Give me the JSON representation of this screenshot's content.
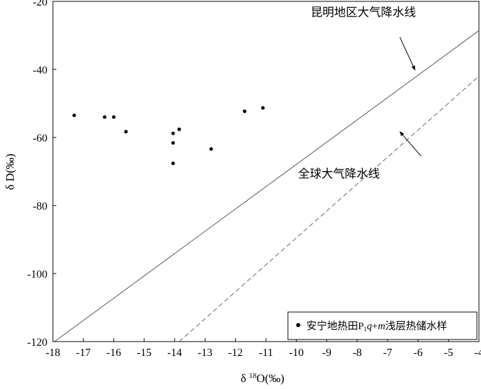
{
  "chart_data": {
    "type": "scatter",
    "xlabel": "δ ¹⁸O(‰)",
    "xlabel_parts": {
      "delta": "δ",
      "sup": "18",
      "rest": "O(‰)"
    },
    "ylabel": "δ D(‰)",
    "xlim": [
      -18,
      -4
    ],
    "ylim": [
      -120,
      -20
    ],
    "xticks": [
      -18,
      -17,
      -16,
      -15,
      -14,
      -13,
      -12,
      -11,
      -10,
      -9,
      -8,
      -7,
      -6,
      -5,
      -4
    ],
    "yticks": [
      -20,
      -40,
      -60,
      -80,
      -100,
      -120
    ],
    "grid": false,
    "legend_position": "bottom-right",
    "series": [
      {
        "name": "安宁地热田P1q+m浅层热储水样",
        "legend_parts": {
          "pre": "安宁地热田P",
          "sub": "1",
          "q": "q",
          "plus": "+",
          "m": "m",
          "post": "浅层热储水样"
        },
        "marker": "dot",
        "color": "#000000",
        "points": [
          {
            "x": -17.3,
            "y": -53.5
          },
          {
            "x": -16.3,
            "y": -54.0
          },
          {
            "x": -16.0,
            "y": -54.0
          },
          {
            "x": -15.6,
            "y": -58.3
          },
          {
            "x": -14.05,
            "y": -58.8
          },
          {
            "x": -13.85,
            "y": -57.6
          },
          {
            "x": -14.05,
            "y": -61.6
          },
          {
            "x": -14.05,
            "y": -67.6
          },
          {
            "x": -12.8,
            "y": -63.4
          },
          {
            "x": -11.7,
            "y": -52.3
          },
          {
            "x": -11.1,
            "y": -51.3
          }
        ]
      }
    ],
    "lines": [
      {
        "name": "昆明地区大气降水线",
        "style": "solid",
        "color": "#555555",
        "x1": -18.1,
        "y1": -121,
        "x2": -4,
        "y2": -28.6
      },
      {
        "name": "全球大气降水线",
        "style": "dashed",
        "color": "#666666",
        "x1": -13.85,
        "y1": -120,
        "x2": -4,
        "y2": -42
      }
    ],
    "annotations": [
      {
        "text": "昆明地区大气降水线",
        "label_x": -7.8,
        "label_y": -24.3,
        "arrow_from": [
          -6.6,
          -30.5
        ],
        "arrow_to": [
          -6.1,
          -40.2
        ]
      },
      {
        "text": "全球大气降水线",
        "label_x": -8.6,
        "label_y": -71.8,
        "arrow_from": [
          -5.9,
          -65.5
        ],
        "arrow_to": [
          -6.6,
          -58.3
        ]
      }
    ]
  }
}
